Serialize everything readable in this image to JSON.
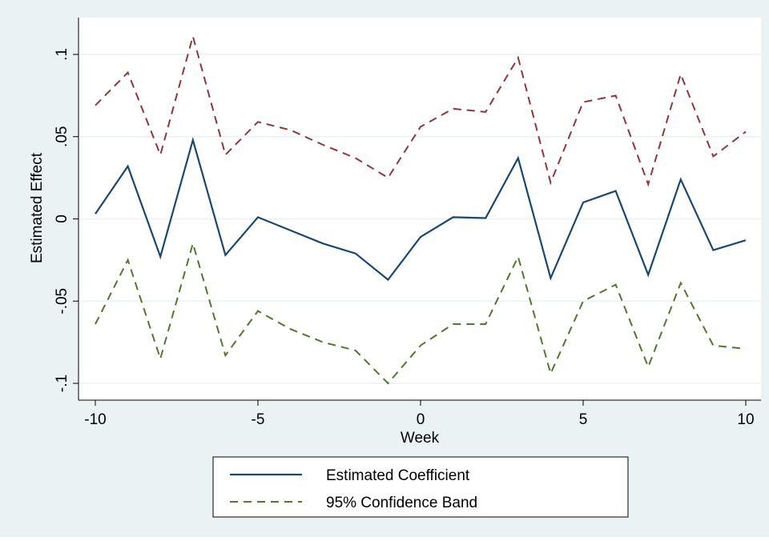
{
  "colors": {
    "outer_background": "#eaf2f3",
    "plot_background": "#ffffff",
    "grid": "#eaf2f3",
    "coefficient_line": "#1a476f",
    "upper_band_line": "#90353b",
    "lower_band_line": "#55752f",
    "legend_band_line": "#55752f"
  },
  "chart_data": {
    "type": "line",
    "title": "",
    "xlabel": "Week",
    "ylabel": "Estimated Effect",
    "xlim": [
      -10,
      10
    ],
    "ylim": [
      -0.1,
      0.1
    ],
    "x_ticks": [
      -10,
      -5,
      0,
      5,
      10
    ],
    "x_tick_labels": [
      "-10",
      "-5",
      "0",
      "5",
      "10"
    ],
    "y_ticks": [
      -0.1,
      -0.05,
      0,
      0.05,
      0.1
    ],
    "y_tick_labels": [
      "-.1",
      "-.05",
      "0",
      ".05",
      ".1"
    ],
    "grid": "horizontal",
    "legend_position": "bottom",
    "legend": [
      {
        "label": "Estimated Coefficient",
        "style": "solid",
        "color_key": "coefficient_line"
      },
      {
        "label": "95% Confidence Band",
        "style": "dashed",
        "color_key": "legend_band_line"
      }
    ],
    "x": [
      -10,
      -9,
      -8,
      -7,
      -6,
      -5,
      -4,
      -3,
      -2,
      -1,
      0,
      1,
      2,
      3,
      4,
      5,
      6,
      7,
      8,
      9,
      10
    ],
    "series": [
      {
        "name": "Estimated Coefficient",
        "style": "solid",
        "color_key": "coefficient_line",
        "values": [
          0.003,
          0.032,
          -0.023,
          0.048,
          -0.022,
          0.001,
          -0.007,
          -0.015,
          -0.021,
          -0.037,
          -0.011,
          0.001,
          0.0005,
          0.037,
          -0.036,
          0.01,
          0.017,
          -0.034,
          0.024,
          -0.019,
          -0.013
        ]
      },
      {
        "name": "95% Confidence Band",
        "style": "dashed",
        "color_key": "upper_band_line",
        "values": [
          0.069,
          0.089,
          0.039,
          0.111,
          0.039,
          0.059,
          0.054,
          0.045,
          0.037,
          0.025,
          0.056,
          0.067,
          0.065,
          0.098,
          0.022,
          0.071,
          0.075,
          0.021,
          0.088,
          0.038,
          0.053
        ]
      },
      {
        "name": "95% Confidence Band",
        "style": "dashed",
        "color_key": "lower_band_line",
        "values": [
          -0.064,
          -0.025,
          -0.085,
          -0.015,
          -0.083,
          -0.056,
          -0.067,
          -0.075,
          -0.08,
          -0.1,
          -0.077,
          -0.064,
          -0.064,
          -0.023,
          -0.094,
          -0.05,
          -0.04,
          -0.09,
          -0.039,
          -0.077,
          -0.079
        ]
      }
    ]
  }
}
